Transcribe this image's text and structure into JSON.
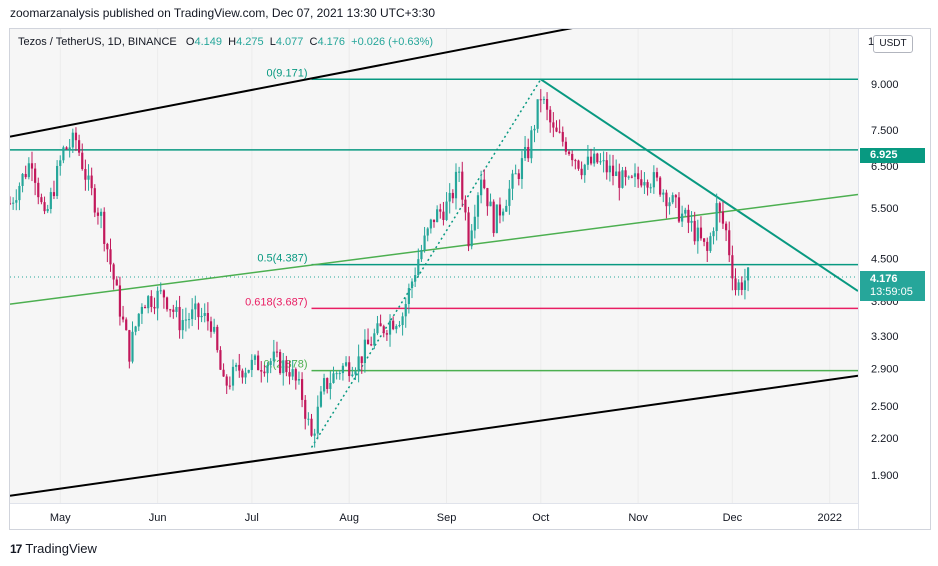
{
  "header": {
    "publisher_line": "zoomarzanalysis published on TradingView.com, Dec 07, 2021 13:30 UTC+3:30"
  },
  "legend": {
    "symbol": "Tezos / TetherUS, 1D, BINANCE",
    "open_label": "O",
    "open": "4.149",
    "high_label": "H",
    "high": "4.275",
    "low_label": "L",
    "low": "4.077",
    "close_label": "C",
    "close": "4.176",
    "change": "+0.026 (+0.63%)"
  },
  "price_axis": {
    "currency": "USDT",
    "top_cut_label": "1"
  },
  "badges": {
    "level": {
      "value": "6.925",
      "color": "#089981"
    },
    "last": {
      "value": "4.176",
      "countdown": "13:59:05",
      "color": "#26a69a"
    }
  },
  "footer": {
    "brand": "TradingView",
    "logo_glyph": "17"
  },
  "colors": {
    "up": "#26a69a",
    "down": "#c2185b",
    "fib_teal": "#089981",
    "fib_pink": "#e91e63",
    "fib_green": "#4caf50",
    "channel": "#000000",
    "trend_teal": "#089981",
    "trend_green": "#4caf50"
  },
  "chart_data": {
    "type": "candlestick",
    "title": "Tezos / TetherUS, 1D, BINANCE",
    "x_start": "2021-04-15",
    "x_end": "2022-01-10",
    "y_scale": "log",
    "ylim": [
      1.7,
      11.2
    ],
    "y_ticks": [
      1.9,
      2.2,
      2.5,
      2.9,
      3.3,
      3.8,
      4.5,
      5.5,
      6.5,
      7.5,
      9.0
    ],
    "y_tick_labels": [
      "1.900",
      "2.200",
      "2.500",
      "2.900",
      "3.300",
      "3.800",
      "4.500",
      "5.500",
      "6.500",
      "7.500",
      "9.000"
    ],
    "x_ticks": [
      {
        "date": "2021-05-01",
        "label": "May"
      },
      {
        "date": "2021-06-01",
        "label": "Jun"
      },
      {
        "date": "2021-07-01",
        "label": "Jul"
      },
      {
        "date": "2021-08-01",
        "label": "Aug"
      },
      {
        "date": "2021-09-01",
        "label": "Sep"
      },
      {
        "date": "2021-10-01",
        "label": "Oct"
      },
      {
        "date": "2021-11-01",
        "label": "Nov"
      },
      {
        "date": "2021-12-01",
        "label": "Dec"
      },
      {
        "date": "2022-01-01",
        "label": "2022"
      }
    ],
    "close_path": [
      [
        "2021-04-15",
        5.6
      ],
      [
        "2021-04-22",
        6.7
      ],
      [
        "2021-04-26",
        5.2
      ],
      [
        "2021-05-02",
        6.9
      ],
      [
        "2021-05-06",
        7.2
      ],
      [
        "2021-05-10",
        6.0
      ],
      [
        "2021-05-14",
        5.3
      ],
      [
        "2021-05-19",
        3.9
      ],
      [
        "2021-05-23",
        3.1
      ],
      [
        "2021-05-27",
        3.8
      ],
      [
        "2021-06-03",
        3.9
      ],
      [
        "2021-06-08",
        3.5
      ],
      [
        "2021-06-13",
        3.6
      ],
      [
        "2021-06-18",
        3.5
      ],
      [
        "2021-06-22",
        2.7
      ],
      [
        "2021-06-27",
        2.9
      ],
      [
        "2021-07-02",
        2.95
      ],
      [
        "2021-07-08",
        3.0
      ],
      [
        "2021-07-13",
        2.9
      ],
      [
        "2021-07-17",
        2.6
      ],
      [
        "2021-07-20",
        2.2
      ],
      [
        "2021-07-24",
        2.7
      ],
      [
        "2021-07-29",
        2.9
      ],
      [
        "2021-08-04",
        3.0
      ],
      [
        "2021-08-09",
        3.3
      ],
      [
        "2021-08-14",
        3.5
      ],
      [
        "2021-08-18",
        3.6
      ],
      [
        "2021-08-23",
        4.5
      ],
      [
        "2021-08-28",
        5.3
      ],
      [
        "2021-09-02",
        5.6
      ],
      [
        "2021-09-05",
        6.4
      ],
      [
        "2021-09-08",
        4.9
      ],
      [
        "2021-09-12",
        6.3
      ],
      [
        "2021-09-16",
        5.2
      ],
      [
        "2021-09-21",
        5.9
      ],
      [
        "2021-09-27",
        6.9
      ],
      [
        "2021-10-01",
        8.6
      ],
      [
        "2021-10-05",
        7.4
      ],
      [
        "2021-10-09",
        7.1
      ],
      [
        "2021-10-14",
        6.5
      ],
      [
        "2021-10-19",
        6.6
      ],
      [
        "2021-10-24",
        6.3
      ],
      [
        "2021-10-29",
        6.0
      ],
      [
        "2021-11-03",
        6.3
      ],
      [
        "2021-11-08",
        6.0
      ],
      [
        "2021-11-13",
        5.5
      ],
      [
        "2021-11-18",
        5.1
      ],
      [
        "2021-11-23",
        4.6
      ],
      [
        "2021-11-26",
        5.5
      ],
      [
        "2021-11-29",
        5.0
      ],
      [
        "2021-12-02",
        4.0
      ],
      [
        "2021-12-06",
        4.176
      ]
    ],
    "fib_levels": [
      {
        "label": "0(9.171)",
        "value": 9.171
      },
      {
        "label": "0.5(4.387)",
        "value": 4.387
      },
      {
        "label": "0.618(3.687)",
        "value": 3.687
      },
      {
        "label": "0.(2.878)",
        "value": 2.878
      }
    ],
    "horizontal_levels": [
      6.925
    ],
    "annotations": [
      {
        "type": "line",
        "name": "channel-top",
        "from": [
          "2021-04-15",
          7.3
        ],
        "to": [
          "2022-01-10",
          14.0
        ]
      },
      {
        "type": "line",
        "name": "channel-bottom",
        "from": [
          "2021-04-15",
          1.75
        ],
        "to": [
          "2022-01-10",
          2.82
        ]
      },
      {
        "type": "line",
        "name": "descending-trend",
        "from": [
          "2021-10-01",
          9.17
        ],
        "to": [
          "2022-01-10",
          3.95
        ]
      },
      {
        "type": "line",
        "name": "rising-trend",
        "from": [
          "2021-04-15",
          3.75
        ],
        "to": [
          "2022-01-10",
          5.8
        ]
      },
      {
        "type": "dotted",
        "name": "swing-leg",
        "from": [
          "2021-07-20",
          2.12
        ],
        "to": [
          "2021-10-01",
          9.17
        ]
      }
    ]
  }
}
